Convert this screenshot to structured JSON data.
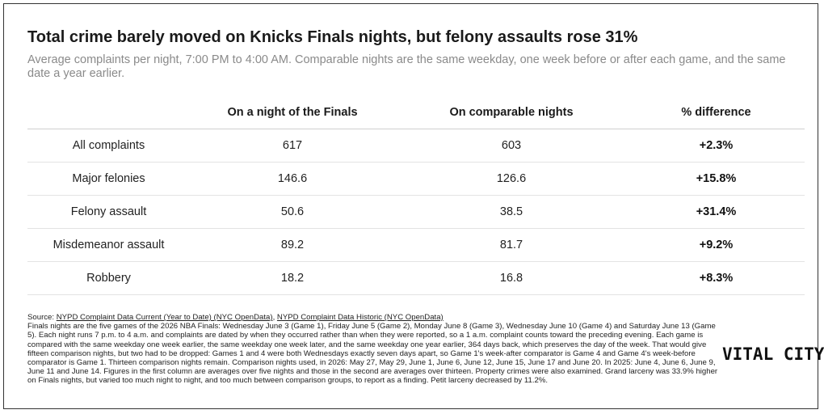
{
  "title": "Total crime barely moved on Knicks Finals nights, but felony assaults rose 31%",
  "subtitle": "Average complaints per night, 7:00 PM to 4:00 AM. Comparable nights are the same weekday, one week before or after each game, and the same date a year earlier.",
  "chart_data": {
    "type": "table",
    "columns": [
      "",
      "On a night of the Finals",
      "On comparable nights",
      "% difference"
    ],
    "rows": [
      {
        "label": "All complaints",
        "finals": "617",
        "comparable": "603",
        "diff": "+2.3%"
      },
      {
        "label": "Major felonies",
        "finals": "146.6",
        "comparable": "126.6",
        "diff": "+15.8%"
      },
      {
        "label": "Felony assault",
        "finals": "50.6",
        "comparable": "38.5",
        "diff": "+31.4%"
      },
      {
        "label": "Misdemeanor assault",
        "finals": "89.2",
        "comparable": "81.7",
        "diff": "+9.2%"
      },
      {
        "label": "Robbery",
        "finals": "18.2",
        "comparable": "16.8",
        "diff": "+8.3%"
      }
    ]
  },
  "footer": {
    "source_prefix": "Source: ",
    "source_link_1": "NYPD Complaint Data Current (Year to Date) (NYC OpenData)",
    "source_sep": ", ",
    "source_link_2": "NYPD Complaint Data Historic (NYC OpenData)",
    "notes": "Finals nights are the five games of the 2026 NBA Finals: Wednesday June 3 (Game 1), Friday June 5 (Game 2), Monday June 8 (Game 3), Wednesday June 10 (Game 4) and Saturday June 13 (Game 5). Each night runs 7 p.m. to 4 a.m. and complaints are dated by when they occurred rather than when they were reported, so a 1 a.m. complaint counts toward the preceding evening. Each game is compared with the same weekday one week earlier, the same weekday one week later, and the same weekday one year earlier, 364 days back, which preserves the day of the week. That would give fifteen comparison nights, but two had to be dropped: Games 1 and 4 were both Wednesdays exactly seven days apart, so Game 1's week-after comparator is Game 4 and Game 4's week-before comparator is Game 1. Thirteen comparison nights remain. Comparison nights used, in 2026: May 27, May 29, June 1, June 6, June 12, June 15, June 17 and June 20. In 2025: June 4, June 6, June 9, June 11 and June 14. Figures in the first column are averages over five nights and those in the second are averages over thirteen. Property crimes were also examined. Grand larceny was 33.9% higher on Finals nights, but varied too much night to night, and too much between comparison groups, to report as a finding. Petit larceny decreased by 11.2%."
  },
  "logo": "VITAL CITY"
}
